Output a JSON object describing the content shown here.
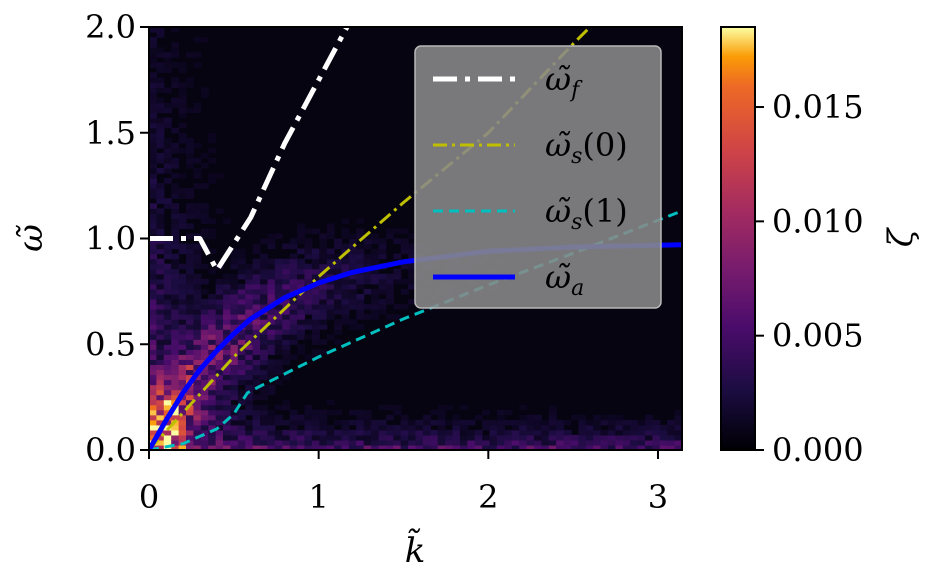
{
  "chart_data": {
    "type": "heatmap",
    "title": "",
    "xlabel": "k̃",
    "ylabel": "ω̃",
    "xlim": [
      0,
      3.14159
    ],
    "ylim": [
      0,
      2.0
    ],
    "xticks": [
      {
        "value": 0,
        "label": "0"
      },
      {
        "value": 1,
        "label": "1"
      },
      {
        "value": 2,
        "label": "2"
      },
      {
        "value": 3,
        "label": "3"
      }
    ],
    "yticks": [
      {
        "value": 0.0,
        "label": "0.0"
      },
      {
        "value": 0.5,
        "label": "0.5"
      },
      {
        "value": 1.0,
        "label": "1.0"
      },
      {
        "value": 1.5,
        "label": "1.5"
      },
      {
        "value": 2.0,
        "label": "2.0"
      }
    ],
    "colorbar": {
      "label": "ζ",
      "range": [
        0,
        0.0185
      ],
      "ticks": [
        {
          "value": 0.0,
          "label": "0.000"
        },
        {
          "value": 0.005,
          "label": "0.005"
        },
        {
          "value": 0.01,
          "label": "0.010"
        },
        {
          "value": 0.015,
          "label": "0.015"
        }
      ],
      "colormap": "inferno"
    },
    "legend": {
      "position": "top-right",
      "entries": [
        {
          "label": "ω̃",
          "sub": "f",
          "suffix": "",
          "color": "#ffffff",
          "style": "dashdot"
        },
        {
          "label": "ω̃",
          "sub": "s",
          "suffix": "(0)",
          "color": "#bfbf00",
          "style": "dashdot"
        },
        {
          "label": "ω̃",
          "sub": "s",
          "suffix": "(1)",
          "color": "#00bfbf",
          "style": "dashed"
        },
        {
          "label": "ω̃",
          "sub": "a",
          "suffix": "",
          "color": "#0000ff",
          "style": "solid"
        }
      ]
    },
    "series": [
      {
        "name": "ω̃_f",
        "x": [
          0,
          0.3,
          0.4,
          0.6,
          0.8,
          1.0,
          1.2
        ],
        "y": [
          1.0,
          1.0,
          0.85,
          1.1,
          1.45,
          1.75,
          2.05
        ]
      },
      {
        "name": "ω̃_s(0)",
        "x": [
          0,
          0.5,
          1.0,
          1.5,
          2.0,
          2.5,
          2.6
        ],
        "y": [
          0,
          0.44,
          0.82,
          1.17,
          1.5,
          1.92,
          2.0
        ]
      },
      {
        "name": "ω̃_s(1)",
        "x": [
          0,
          0.2,
          0.4,
          0.5,
          0.58,
          0.65,
          1.0,
          1.5,
          2.0,
          2.5,
          3.14
        ],
        "y": [
          0,
          0.03,
          0.1,
          0.17,
          0.27,
          0.3,
          0.44,
          0.62,
          0.78,
          0.93,
          1.13
        ]
      },
      {
        "name": "ω̃_a",
        "x": [
          0,
          0.1,
          0.2,
          0.3,
          0.4,
          0.5,
          0.6,
          0.8,
          1.0,
          1.2,
          1.5,
          2.0,
          2.5,
          3.14
        ],
        "y": [
          0,
          0.14,
          0.27,
          0.38,
          0.47,
          0.55,
          0.62,
          0.72,
          0.79,
          0.84,
          0.89,
          0.94,
          0.96,
          0.97
        ]
      }
    ]
  }
}
